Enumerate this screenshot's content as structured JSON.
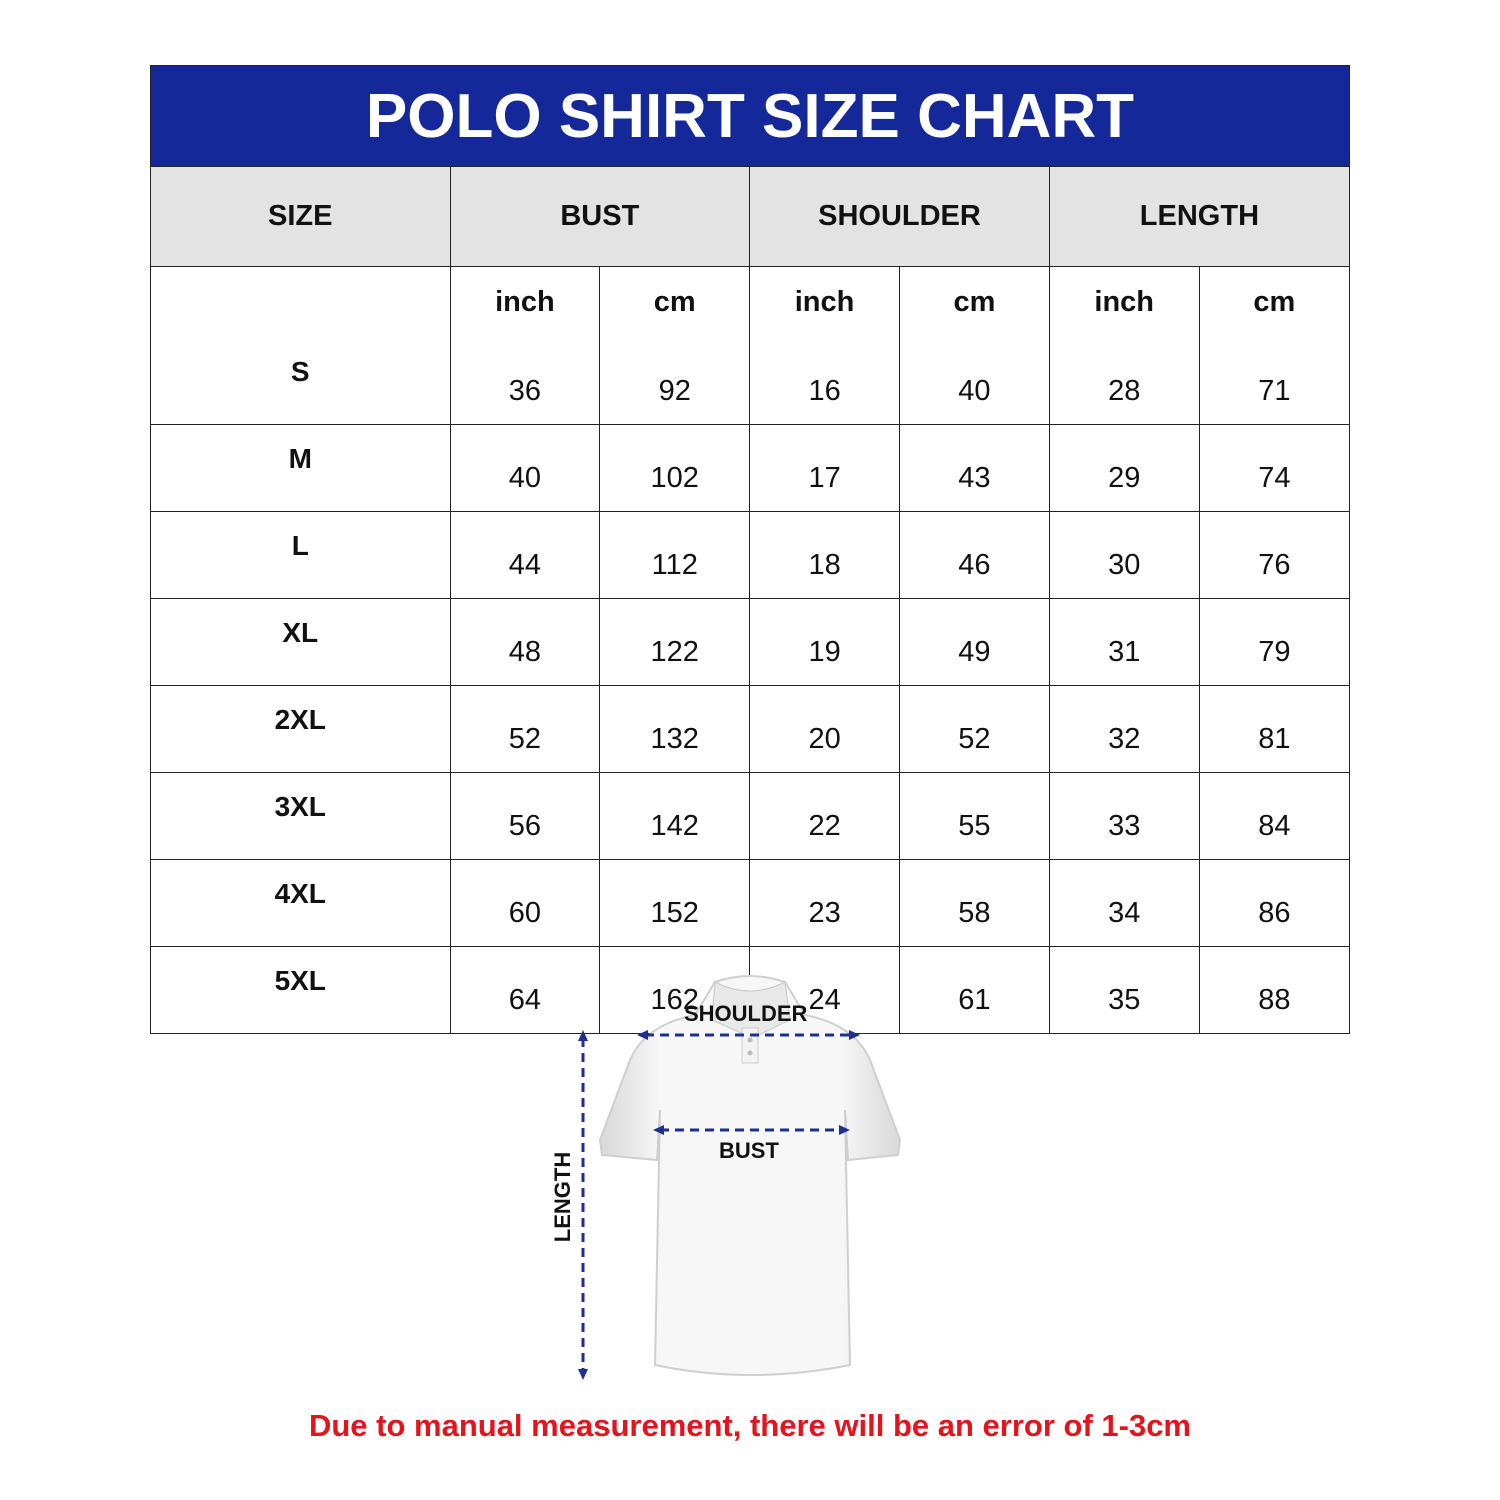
{
  "title": "POLO SHIRT SIZE CHART",
  "header": {
    "size": "SIZE",
    "bust": "BUST",
    "shoulder": "SHOULDER",
    "length": "LENGTH"
  },
  "units": [
    "inch",
    "cm",
    "inch",
    "cm",
    "inch",
    "cm"
  ],
  "rows": [
    {
      "size": "S",
      "values": [
        "36",
        "92",
        "16",
        "40",
        "28",
        "71"
      ]
    },
    {
      "size": "M",
      "values": [
        "40",
        "102",
        "17",
        "43",
        "29",
        "74"
      ]
    },
    {
      "size": "L",
      "values": [
        "44",
        "112",
        "18",
        "46",
        "30",
        "76"
      ]
    },
    {
      "size": "XL",
      "values": [
        "48",
        "122",
        "19",
        "49",
        "31",
        "79"
      ]
    },
    {
      "size": "2XL",
      "values": [
        "52",
        "132",
        "20",
        "52",
        "32",
        "81"
      ]
    },
    {
      "size": "3XL",
      "values": [
        "56",
        "142",
        "22",
        "55",
        "33",
        "84"
      ]
    },
    {
      "size": "4XL",
      "values": [
        "60",
        "152",
        "23",
        "58",
        "34",
        "86"
      ]
    },
    {
      "size": "5XL",
      "values": [
        "64",
        "162",
        "24",
        "61",
        "35",
        "88"
      ]
    }
  ],
  "diagram": {
    "shoulder_label": "SHOULDER",
    "bust_label": "BUST",
    "length_label": "LENGTH"
  },
  "note": "Due to manual measurement, there will be an error of 1-3cm",
  "colors": {
    "title_bg": "#15289a",
    "header_bg": "#e3e3e3",
    "note": "#e3141b",
    "arrows": "#1f2f8f"
  }
}
